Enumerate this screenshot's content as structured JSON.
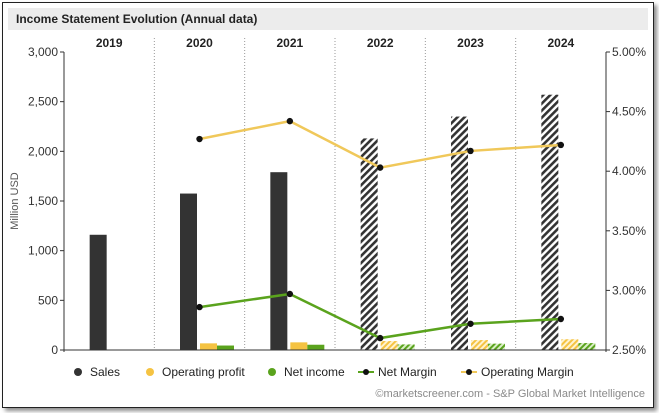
{
  "title": "Income Statement Evolution (Annual data)",
  "credit": "©marketscreener.com - S&P Global Market Intelligence",
  "chart_data": {
    "type": "bar",
    "title": "Income Statement Evolution (Annual data)",
    "categories": [
      "2019",
      "2020",
      "2021",
      "2022",
      "2023",
      "2024"
    ],
    "ylabel": "Million USD",
    "ylim": [
      0,
      3000
    ],
    "yticks": [
      "0",
      "500",
      "1,000",
      "1,500",
      "2,000",
      "2,500",
      "3,000"
    ],
    "y2lim": [
      2.5,
      5.0
    ],
    "y2ticks": [
      "2.50%",
      "3.00%",
      "3.50%",
      "4.00%",
      "4.50%",
      "5.00%"
    ],
    "estimate_from_index": 3,
    "bar_series": [
      {
        "name": "Sales",
        "color": "#333333",
        "values": [
          1160,
          1575,
          1790,
          2130,
          2350,
          2570
        ]
      },
      {
        "name": "Operating profit",
        "color": "#f5c342",
        "values": [
          null,
          67,
          77,
          90,
          100,
          108
        ]
      },
      {
        "name": "Net income",
        "color": "#5aa31d",
        "values": [
          null,
          45,
          53,
          56,
          64,
          70
        ]
      }
    ],
    "line_series": [
      {
        "name": "Net Margin",
        "color": "#5aa31d",
        "values": [
          null,
          2.86,
          2.97,
          2.6,
          2.72,
          2.76
        ]
      },
      {
        "name": "Operating Margin",
        "color": "#f0c85a",
        "values": [
          null,
          4.27,
          4.42,
          4.03,
          4.17,
          4.22
        ]
      }
    ],
    "legend": {
      "position": "bottom",
      "items": [
        {
          "label": "Sales",
          "kind": "dot",
          "color": "#333333"
        },
        {
          "label": "Operating profit",
          "kind": "dot",
          "color": "#f5c342"
        },
        {
          "label": "Net income",
          "kind": "dot",
          "color": "#5aa31d"
        },
        {
          "label": "Net Margin",
          "kind": "line",
          "color": "#5aa31d"
        },
        {
          "label": "Operating Margin",
          "kind": "line",
          "color": "#f0c85a"
        }
      ]
    },
    "grid": "vertical dotted separators"
  }
}
